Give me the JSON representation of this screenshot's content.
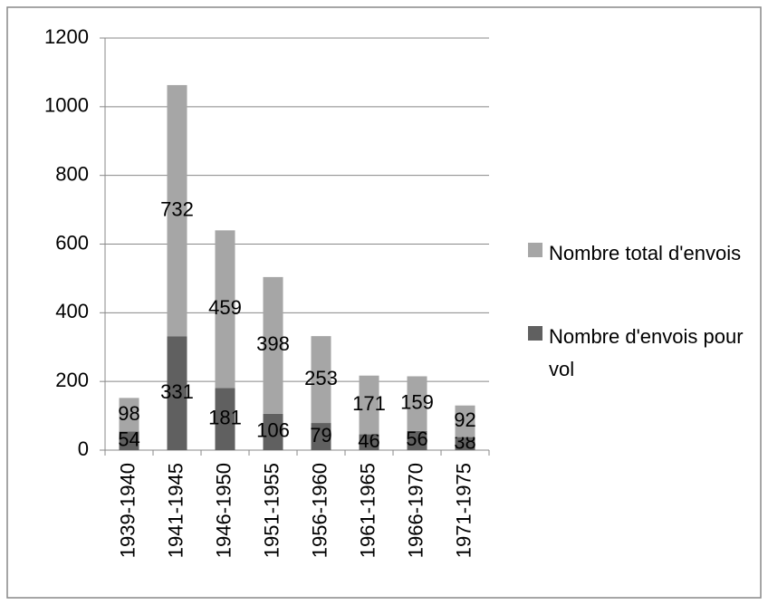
{
  "chart_data": {
    "type": "bar",
    "stacked": true,
    "categories": [
      "1939-1940",
      "1941-1945",
      "1946-1950",
      "1951-1955",
      "1956-1960",
      "1961-1965",
      "1966-1970",
      "1971-1975"
    ],
    "series": [
      {
        "name": "Nombre d'envois pour vol",
        "color": "#606060",
        "values": [
          54,
          331,
          181,
          106,
          79,
          46,
          56,
          38
        ]
      },
      {
        "name": "Nombre total d'envois",
        "color": "#a6a6a6",
        "values": [
          98,
          732,
          459,
          398,
          253,
          171,
          159,
          92
        ]
      }
    ],
    "ylim": [
      0,
      1200
    ],
    "yticks": [
      0,
      200,
      400,
      600,
      800,
      1000,
      1200
    ],
    "grid": true,
    "legend": "right"
  }
}
